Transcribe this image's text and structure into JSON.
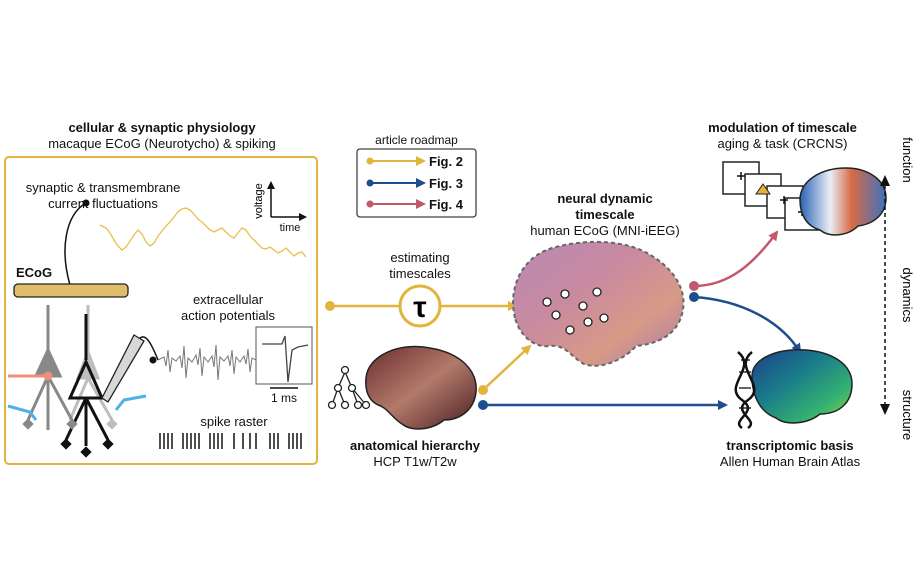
{
  "cellular": {
    "title": "cellular & synaptic physiology",
    "subtitle": "macaque ECoG (Neurotycho) & spiking",
    "synaptic_label_1": "synaptic & transmembrane",
    "synaptic_label_2": "current fluctuations",
    "voltage_label": "voltage",
    "time_label": "time",
    "ecog_label": "ECoG",
    "extracellular_1": "extracellular",
    "extracellular_2": "action potentials",
    "scale_label": "1 ms",
    "spike_raster": "spike raster"
  },
  "roadmap": {
    "title": "article roadmap",
    "items": [
      {
        "label": "Fig. 2",
        "color": "#e2b43c"
      },
      {
        "label": "Fig. 3",
        "color": "#1f4e8c"
      },
      {
        "label": "Fig. 4",
        "color": "#c05a6a"
      }
    ]
  },
  "estimating": {
    "line1": "estimating",
    "line2": "timescales",
    "symbol": "τ"
  },
  "neural": {
    "title1": "neural dynamic",
    "title2": "timescale",
    "subtitle": "human ECoG (MNI-iEEG)"
  },
  "anatomical": {
    "title": "anatomical hierarchy",
    "subtitle": "HCP T1w/T2w"
  },
  "modulation": {
    "title": "modulation of timescale",
    "subtitle": "aging & task (CRCNS)"
  },
  "transcriptomic": {
    "title": "transcriptomic basis",
    "subtitle": "Allen Human Brain Atlas"
  },
  "axis": {
    "function": "function",
    "dynamics": "dynamics",
    "structure": "structure"
  },
  "colors": {
    "gold": "#e2b43c",
    "blue": "#1f4e8c",
    "red": "#c05a6a",
    "light_blue": "#4eb1e6",
    "salmon": "#f0907c"
  }
}
